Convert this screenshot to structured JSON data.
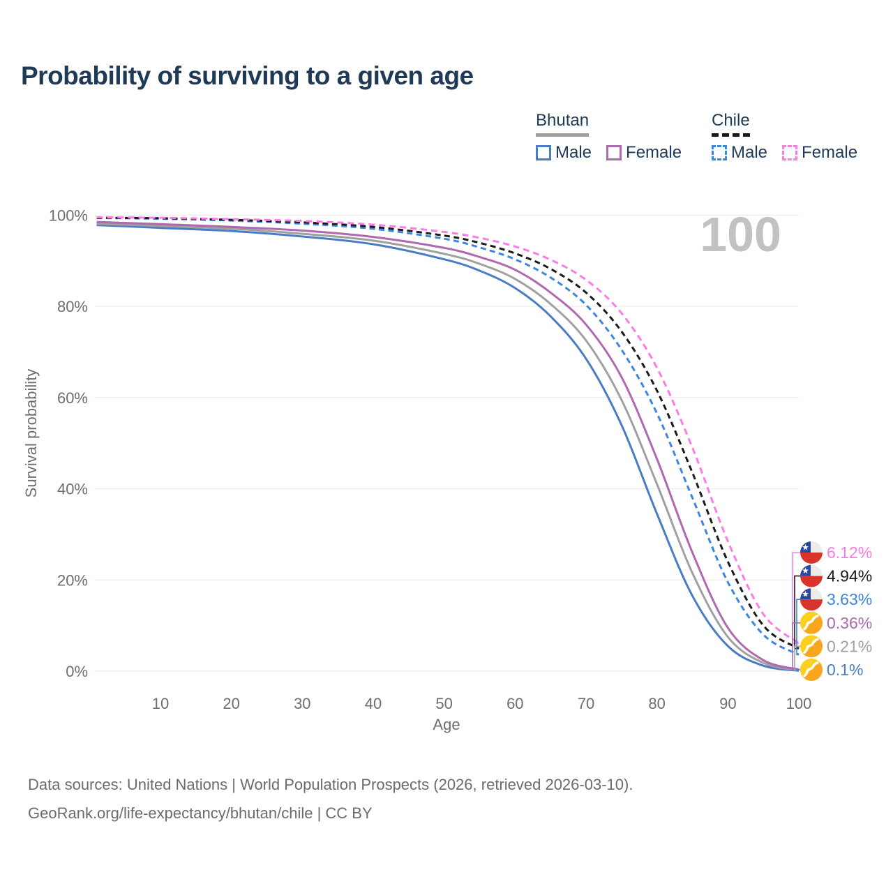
{
  "chart": {
    "title": "Probability of surviving to a given age",
    "watermark_age": "100"
  },
  "legend": {
    "groups": [
      {
        "country": "Bhutan",
        "line_style": "solid",
        "line_color": "#9e9e9e",
        "items": [
          {
            "label": "Male",
            "swatch_color": "#4a7cc4",
            "swatch_style": "solid"
          },
          {
            "label": "Female",
            "swatch_color": "#b068b0",
            "swatch_style": "solid"
          }
        ]
      },
      {
        "country": "Chile",
        "line_style": "dashed",
        "line_color": "#1a1a1a",
        "items": [
          {
            "label": "Male",
            "swatch_color": "#3b87e0",
            "swatch_style": "dashed"
          },
          {
            "label": "Female",
            "swatch_color": "#fb7ce4",
            "swatch_style": "dashed"
          }
        ]
      }
    ]
  },
  "chart_data": {
    "type": "line",
    "title": "Probability of surviving to a given age",
    "xlabel": "Age",
    "ylabel": "Survival probability",
    "xlim": [
      0,
      100
    ],
    "ylim": [
      0,
      100
    ],
    "grid": "horizontal",
    "legend_position": "top-right",
    "x_ticks": [
      {
        "value": 10,
        "label": "10"
      },
      {
        "value": 20,
        "label": "20"
      },
      {
        "value": 30,
        "label": "30"
      },
      {
        "value": 40,
        "label": "40"
      },
      {
        "value": 50,
        "label": "50"
      },
      {
        "value": 60,
        "label": "60"
      },
      {
        "value": 70,
        "label": "70"
      },
      {
        "value": 80,
        "label": "80"
      },
      {
        "value": 90,
        "label": "90"
      },
      {
        "value": 100,
        "label": "100"
      }
    ],
    "y_ticks": [
      {
        "value": 0,
        "label": "0%"
      },
      {
        "value": 20,
        "label": "20%"
      },
      {
        "value": 40,
        "label": "40%"
      },
      {
        "value": 60,
        "label": "60%"
      },
      {
        "value": 80,
        "label": "80%"
      },
      {
        "value": 100,
        "label": "100%"
      }
    ],
    "ages": [
      1,
      10,
      20,
      30,
      40,
      50,
      55,
      60,
      65,
      70,
      75,
      80,
      85,
      90,
      95,
      100
    ],
    "series": [
      {
        "id": "bhutan-male",
        "country": "Bhutan",
        "sex": "Male",
        "color": "#4a7cc4",
        "line_style": "solid",
        "flag": "bhutan",
        "end_label": "0.1%",
        "values": [
          97.8,
          97.2,
          96.5,
          95.3,
          93.6,
          90.3,
          87.8,
          84.0,
          77.8,
          68.5,
          54.0,
          34.5,
          16.5,
          5.5,
          1.2,
          0.1
        ]
      },
      {
        "id": "bhutan-total",
        "country": "Bhutan",
        "sex": "Both sexes",
        "color": "#a0a0a0",
        "line_style": "solid",
        "flag": "bhutan",
        "end_label": "0.21%",
        "values": [
          98.1,
          97.6,
          97.0,
          95.9,
          94.4,
          91.5,
          89.3,
          86.0,
          80.5,
          72.5,
          59.5,
          41.0,
          21.5,
          7.5,
          1.8,
          0.21
        ]
      },
      {
        "id": "bhutan-female",
        "country": "Bhutan",
        "sex": "Female",
        "color": "#b068b0",
        "line_style": "solid",
        "flag": "bhutan",
        "end_label": "0.36%",
        "values": [
          98.5,
          98.0,
          97.4,
          96.6,
          95.2,
          92.8,
          90.8,
          88.0,
          83.0,
          76.0,
          64.5,
          46.5,
          26.0,
          9.5,
          2.4,
          0.36
        ]
      },
      {
        "id": "chile-male",
        "country": "Chile",
        "sex": "Male",
        "color": "#3b87e0",
        "line_style": "dashed",
        "flag": "chile",
        "end_label": "3.63%",
        "values": [
          99.35,
          99.2,
          98.8,
          98.1,
          97.0,
          94.8,
          92.9,
          90.3,
          86.3,
          80.3,
          70.5,
          56.5,
          38.0,
          19.5,
          8.0,
          3.63
        ]
      },
      {
        "id": "chile-total",
        "country": "Chile",
        "sex": "Both sexes",
        "color": "#1a1a1a",
        "line_style": "dashed",
        "flag": "chile",
        "end_label": "4.94%",
        "values": [
          99.4,
          99.3,
          98.95,
          98.4,
          97.4,
          95.5,
          93.9,
          91.6,
          88.2,
          83.0,
          74.5,
          61.5,
          43.5,
          24.0,
          10.0,
          4.94
        ]
      },
      {
        "id": "chile-female",
        "country": "Chile",
        "sex": "Female",
        "color": "#fb7ce4",
        "line_style": "dashed",
        "flag": "chile",
        "end_label": "6.12%",
        "values": [
          99.5,
          99.4,
          99.1,
          98.7,
          97.9,
          96.3,
          95.0,
          93.1,
          90.2,
          85.8,
          78.5,
          66.5,
          49.0,
          28.5,
          12.5,
          6.12
        ]
      }
    ],
    "end_label_order": [
      "chile-female",
      "chile-total",
      "chile-male",
      "bhutan-female",
      "bhutan-total",
      "bhutan-male"
    ]
  },
  "footer": {
    "line1": "Data sources: United Nations | World Population Prospects (2026, retrieved 2026-03-10).",
    "line2": "GeoRank.org/life-expectancy/bhutan/chile | CC BY"
  }
}
